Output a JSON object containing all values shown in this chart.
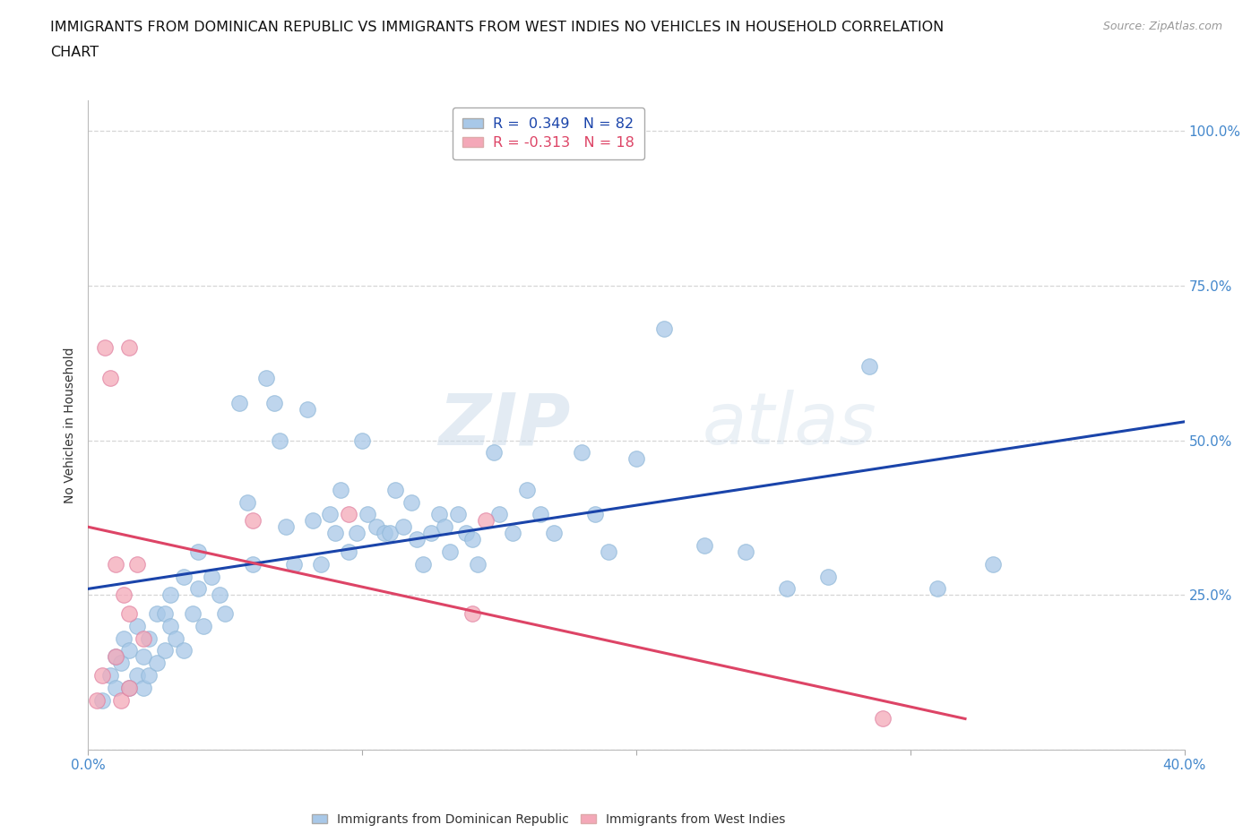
{
  "title_line1": "IMMIGRANTS FROM DOMINICAN REPUBLIC VS IMMIGRANTS FROM WEST INDIES NO VEHICLES IN HOUSEHOLD CORRELATION",
  "title_line2": "CHART",
  "source": "Source: ZipAtlas.com",
  "ylabel": "No Vehicles in Household",
  "x_label_blue": "Immigrants from Dominican Republic",
  "x_label_pink": "Immigrants from West Indies",
  "r_blue": 0.349,
  "n_blue": 82,
  "r_pink": -0.313,
  "n_pink": 18,
  "xlim": [
    0.0,
    0.4
  ],
  "ylim": [
    0.0,
    1.05
  ],
  "color_blue": "#a8c8e8",
  "color_pink": "#f4a8b8",
  "line_blue": "#1a44aa",
  "line_pink": "#dd4466",
  "watermark_zip": "ZIP",
  "watermark_atlas": "atlas",
  "blue_x": [
    0.005,
    0.008,
    0.01,
    0.01,
    0.012,
    0.013,
    0.015,
    0.015,
    0.018,
    0.018,
    0.02,
    0.02,
    0.022,
    0.022,
    0.025,
    0.025,
    0.028,
    0.028,
    0.03,
    0.03,
    0.032,
    0.035,
    0.035,
    0.038,
    0.04,
    0.04,
    0.042,
    0.045,
    0.048,
    0.05,
    0.055,
    0.058,
    0.06,
    0.065,
    0.068,
    0.07,
    0.072,
    0.075,
    0.08,
    0.082,
    0.085,
    0.088,
    0.09,
    0.092,
    0.095,
    0.098,
    0.1,
    0.102,
    0.105,
    0.108,
    0.11,
    0.112,
    0.115,
    0.118,
    0.12,
    0.122,
    0.125,
    0.128,
    0.13,
    0.132,
    0.135,
    0.138,
    0.14,
    0.142,
    0.148,
    0.15,
    0.155,
    0.16,
    0.165,
    0.17,
    0.18,
    0.185,
    0.19,
    0.2,
    0.21,
    0.225,
    0.24,
    0.255,
    0.27,
    0.285,
    0.31,
    0.33
  ],
  "blue_y": [
    0.08,
    0.12,
    0.15,
    0.1,
    0.14,
    0.18,
    0.1,
    0.16,
    0.12,
    0.2,
    0.1,
    0.15,
    0.12,
    0.18,
    0.14,
    0.22,
    0.16,
    0.22,
    0.2,
    0.25,
    0.18,
    0.16,
    0.28,
    0.22,
    0.26,
    0.32,
    0.2,
    0.28,
    0.25,
    0.22,
    0.56,
    0.4,
    0.3,
    0.6,
    0.56,
    0.5,
    0.36,
    0.3,
    0.55,
    0.37,
    0.3,
    0.38,
    0.35,
    0.42,
    0.32,
    0.35,
    0.5,
    0.38,
    0.36,
    0.35,
    0.35,
    0.42,
    0.36,
    0.4,
    0.34,
    0.3,
    0.35,
    0.38,
    0.36,
    0.32,
    0.38,
    0.35,
    0.34,
    0.3,
    0.48,
    0.38,
    0.35,
    0.42,
    0.38,
    0.35,
    0.48,
    0.38,
    0.32,
    0.47,
    0.68,
    0.33,
    0.32,
    0.26,
    0.28,
    0.62,
    0.26,
    0.3
  ],
  "pink_x": [
    0.003,
    0.005,
    0.006,
    0.008,
    0.01,
    0.01,
    0.012,
    0.013,
    0.015,
    0.015,
    0.015,
    0.018,
    0.02,
    0.06,
    0.095,
    0.14,
    0.145,
    0.29
  ],
  "pink_y": [
    0.08,
    0.12,
    0.65,
    0.6,
    0.15,
    0.3,
    0.08,
    0.25,
    0.1,
    0.22,
    0.65,
    0.3,
    0.18,
    0.37,
    0.38,
    0.22,
    0.37,
    0.05
  ],
  "blue_line_x": [
    0.0,
    0.4
  ],
  "blue_line_y": [
    0.26,
    0.53
  ],
  "pink_line_x": [
    0.0,
    0.32
  ],
  "pink_line_y": [
    0.36,
    0.05
  ]
}
